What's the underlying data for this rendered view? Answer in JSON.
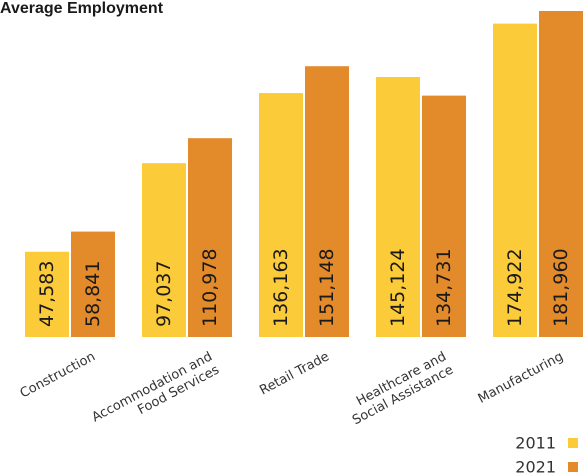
{
  "chart_data": {
    "type": "bar",
    "title": "Average Employment",
    "categories": [
      [
        "Construction"
      ],
      [
        "Accommodation and",
        "Food Services"
      ],
      [
        "Retail Trade"
      ],
      [
        "Healthcare and",
        "Social Assistance"
      ],
      [
        "Manufacturing"
      ]
    ],
    "series": [
      {
        "name": "2011",
        "color": "#FCCB3A",
        "values": [
          47583,
          97037,
          136163,
          145124,
          174922
        ],
        "labels": [
          "47,583",
          "97,037",
          "136,163",
          "145,124",
          "174,922"
        ]
      },
      {
        "name": "2021",
        "color": "#E38A2B",
        "values": [
          58841,
          110978,
          151148,
          134731,
          181960
        ],
        "labels": [
          "58,841",
          "110,978",
          "151,148",
          "134,731",
          "181,960"
        ]
      }
    ],
    "ylim": [
      0,
      181960
    ],
    "grid": false,
    "legend_position": "bottom-right"
  }
}
